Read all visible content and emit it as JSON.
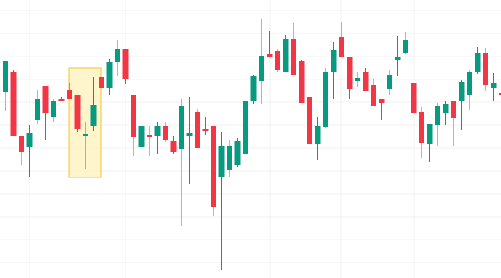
{
  "chart_data": {
    "type": "candlestick",
    "up_color": "#089981",
    "down_color": "#f23645",
    "ylim": [
      0,
      400
    ],
    "open": [
      267,
      296,
      205,
      188,
      228,
      276,
      232,
      257,
      270,
      264,
      204,
      219,
      289,
      274,
      311,
      329,
      264,
      189,
      206,
      204,
      219,
      197,
      186,
      204,
      239,
      214,
      218,
      145,
      155,
      163,
      179,
      254,
      283,
      322,
      327,
      297,
      344,
      312,
      260,
      193,
      217,
      297,
      347,
      318,
      283,
      297,
      278,
      258,
      272,
      314,
      324,
      280,
      239,
      193,
      220,
      237,
      254,
      254,
      264,
      296,
      324,
      273,
      266
    ],
    "high": [
      312,
      300,
      205,
      220,
      270,
      276,
      258,
      260,
      280,
      264,
      225,
      289,
      289,
      315,
      343,
      329,
      264,
      218,
      218,
      224,
      224,
      204,
      258,
      260,
      243,
      231,
      218,
      210,
      198,
      202,
      255,
      292,
      372,
      356,
      330,
      350,
      367,
      314,
      260,
      232,
      302,
      340,
      369,
      318,
      296,
      302,
      286,
      258,
      300,
      348,
      354,
      280,
      246,
      222,
      252,
      255,
      254,
      285,
      300,
      333,
      331,
      295,
      266
    ],
    "low": [
      240,
      205,
      162,
      146,
      222,
      198,
      224,
      254,
      257,
      210,
      157,
      211,
      273,
      263,
      291,
      279,
      175,
      189,
      175,
      178,
      195,
      178,
      75,
      135,
      187,
      206,
      89,
      12,
      145,
      159,
      178,
      250,
      250,
      318,
      296,
      297,
      292,
      252,
      193,
      170,
      216,
      258,
      318,
      258,
      275,
      269,
      247,
      228,
      264,
      290,
      322,
      237,
      172,
      167,
      190,
      220,
      190,
      213,
      242,
      293,
      269,
      255,
      263
    ],
    "close": [
      312,
      205,
      182,
      208,
      258,
      238,
      254,
      254,
      257,
      215,
      207,
      249,
      273,
      311,
      329,
      287,
      203,
      218,
      203,
      218,
      198,
      182,
      248,
      208,
      187,
      211,
      102,
      190,
      190,
      197,
      255,
      290,
      320,
      318,
      299,
      344,
      292,
      252,
      193,
      218,
      297,
      328,
      318,
      272,
      288,
      269,
      248,
      252,
      292,
      318,
      343,
      237,
      194,
      222,
      248,
      250,
      230,
      282,
      296,
      324,
      277,
      281,
      263
    ]
  }
}
